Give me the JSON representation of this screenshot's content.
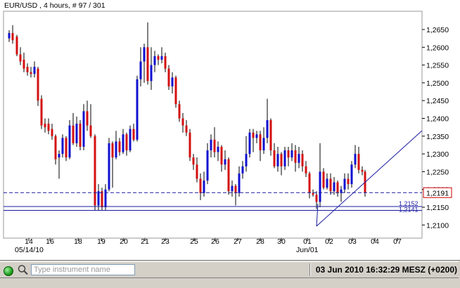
{
  "chart": {
    "title": "EUR/USD , 4 hours, # 97 / 301",
    "price_labels": [
      "1,2650",
      "1,2600",
      "1,2550",
      "1,2500",
      "1,2450",
      "1,2400",
      "1,2350",
      "1,2300",
      "1,2250",
      "1,2200",
      "1,2150",
      "1,2100"
    ],
    "price_values": [
      1.265,
      1.26,
      1.255,
      1.25,
      1.245,
      1.24,
      1.235,
      1.23,
      1.225,
      1.22,
      1.215,
      1.21
    ],
    "date_labels": [
      "14",
      "16",
      "18",
      "19",
      "20",
      "21",
      "23",
      "25",
      "26",
      "27",
      "28",
      "30",
      "01",
      "02",
      "03",
      "04",
      "07"
    ],
    "date_sub_labels": [
      "05/14/10",
      "Jun/01"
    ],
    "current_price_label": "1,2191",
    "current_price": 1.2191,
    "level_labels": [
      "1,2152",
      "1,2141"
    ],
    "level_values": [
      1.2152,
      1.2141
    ],
    "colors": {
      "up": "#1010d0",
      "down": "#d41010",
      "line": "#1a1aa0",
      "current": "#cc0000"
    }
  },
  "status": {
    "connection_icon": "green-dot-icon",
    "search_icon": "magnifier-icon",
    "instrument_placeholder": "Type instrument name",
    "datetime": "03 Jun 2010 16:32:29  MESZ (+0200)"
  }
}
